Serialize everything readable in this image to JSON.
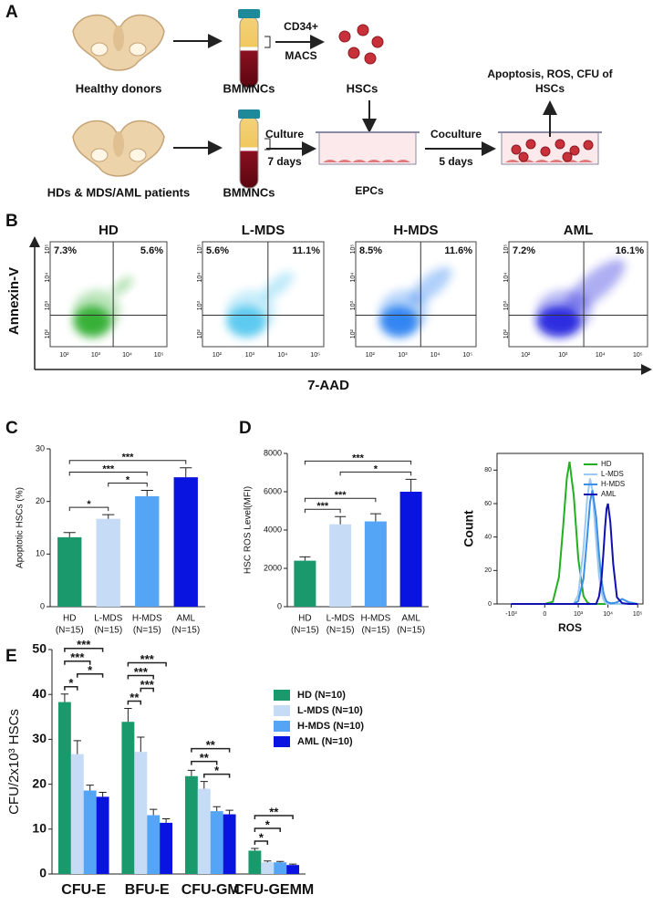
{
  "panel_labels": [
    "A",
    "B",
    "C",
    "D",
    "E"
  ],
  "diagram": {
    "row1_source": "Healthy donors",
    "row1_tube": "BMMNCs",
    "row1_step_top": "CD34+",
    "row1_step_bottom": "MACS",
    "row1_cells": "HSCs",
    "row2_source": "HDs & MDS/AML patients",
    "row2_tube": "BMMNCs",
    "row2_step_top": "Culture",
    "row2_step_bottom": "7 days",
    "row2_dish": "EPCs",
    "row2_coculture_top": "Coculture",
    "row2_coculture_bottom": "5 days",
    "readout_line1": "Apoptosis, ROS, CFU of",
    "readout_line2": "HSCs"
  },
  "flow": {
    "x_label": "7-AAD",
    "y_label": "Annexin-V",
    "xticks": [
      "10²",
      "10³",
      "10⁴",
      "10⁵"
    ],
    "yticks": [
      "10²",
      "10³",
      "10⁴",
      "10⁵"
    ],
    "plots": [
      {
        "title": "HD",
        "upper_left": "7.3%",
        "upper_right": "5.6%",
        "color": "#22a822"
      },
      {
        "title": "L-MDS",
        "upper_left": "5.6%",
        "upper_right": "11.1%",
        "color": "#4cc4ee"
      },
      {
        "title": "H-MDS",
        "upper_left": "8.5%",
        "upper_right": "11.6%",
        "color": "#1e78f0"
      },
      {
        "title": "AML",
        "upper_left": "7.2%",
        "upper_right": "16.1%",
        "color": "#1414dc"
      }
    ]
  },
  "chart_data": [
    {
      "type": "bar",
      "y_label": "Apoptotic HSCs (%)",
      "categories": [
        "HD",
        "L-MDS",
        "H-MDS",
        "AML"
      ],
      "category_sublabels": [
        "(N=15)",
        "(N=15)",
        "(N=15)",
        "(N=15)"
      ],
      "values": [
        13.2,
        16.7,
        21.0,
        24.6
      ],
      "errors": [
        0.9,
        0.8,
        1.1,
        1.8
      ],
      "colors": [
        "#1a9a6c",
        "#c6dbf5",
        "#55a5f7",
        "#0a14e0"
      ],
      "ylim": [
        0,
        30
      ],
      "yticks": [
        0,
        10,
        20,
        30
      ],
      "significance": [
        {
          "from": "HD",
          "to": "L-MDS",
          "label": "*"
        },
        {
          "from": "L-MDS",
          "to": "H-MDS",
          "label": "*"
        },
        {
          "from": "HD",
          "to": "H-MDS",
          "label": "***"
        },
        {
          "from": "HD",
          "to": "AML",
          "label": "***"
        }
      ]
    },
    {
      "type": "bar",
      "y_label": "HSC ROS Level(MFI)",
      "categories": [
        "HD",
        "L-MDS",
        "H-MDS",
        "AML"
      ],
      "category_sublabels": [
        "(N=15)",
        "(N=15)",
        "(N=15)",
        "(N=15)"
      ],
      "values": [
        2400,
        4300,
        4450,
        6000
      ],
      "errors": [
        200,
        400,
        400,
        650
      ],
      "colors": [
        "#1a9a6c",
        "#c6dbf5",
        "#55a5f7",
        "#0a14e0"
      ],
      "ylim": [
        0,
        8000
      ],
      "yticks": [
        0,
        2000,
        4000,
        6000,
        8000
      ],
      "significance": [
        {
          "from": "HD",
          "to": "L-MDS",
          "label": "***"
        },
        {
          "from": "HD",
          "to": "H-MDS",
          "label": "***"
        },
        {
          "from": "L-MDS",
          "to": "AML",
          "label": "*"
        },
        {
          "from": "HD",
          "to": "AML",
          "label": "***"
        }
      ]
    },
    {
      "type": "line",
      "x_label": "ROS",
      "y_label": "Count",
      "xscale": "asinh",
      "legend": "upper left",
      "x": [
        -1000,
        -300,
        0,
        100,
        200,
        300,
        400,
        500,
        700,
        1000,
        1500,
        2000,
        2500,
        3000,
        4000,
        5000,
        6000,
        7000,
        8000,
        9000,
        10000,
        12000,
        15000,
        20000,
        30000,
        50000,
        100000
      ],
      "series": [
        {
          "name": "HD",
          "color": "#22b022",
          "values": [
            0,
            0,
            0,
            1.3,
            16,
            48,
            75,
            85,
            65,
            27,
            4.7,
            1,
            0,
            0,
            0,
            0,
            0,
            0,
            0,
            0,
            0,
            0,
            0,
            0,
            0,
            0,
            0
          ]
        },
        {
          "name": "L-MDS",
          "color": "#9ccaf2",
          "values": [
            0,
            0,
            0,
            0,
            0,
            0,
            0,
            0,
            0,
            5.5,
            33,
            63,
            75,
            68,
            38,
            17,
            7,
            2.8,
            1,
            0,
            0,
            0,
            0,
            0,
            0,
            0,
            0
          ]
        },
        {
          "name": "H-MDS",
          "color": "#3c8fe6",
          "values": [
            0,
            0,
            0,
            0,
            0,
            0,
            0,
            0,
            0,
            1.7,
            15,
            40,
            61,
            68,
            52,
            30,
            15,
            7,
            3.4,
            1.5,
            1,
            0.5,
            0.5,
            1,
            3,
            1,
            0
          ]
        },
        {
          "name": "AML",
          "color": "#1010b0",
          "values": [
            0,
            0,
            0,
            0,
            0,
            0,
            0,
            0,
            0,
            0,
            0,
            0,
            0,
            0,
            0,
            4.4,
            14,
            30,
            46,
            57,
            60,
            49,
            24,
            4,
            0.5,
            0,
            0
          ]
        }
      ],
      "xlim": [
        -3000,
        150000
      ],
      "xticks": [
        {
          "value": -1000,
          "label": "-10³"
        },
        0,
        {
          "value": 1000,
          "label": "10³"
        },
        {
          "value": 10000,
          "label": "10⁴"
        },
        {
          "value": 100000,
          "label": "10⁵"
        }
      ],
      "ylim": [
        0,
        90
      ],
      "yticks": [
        0,
        20,
        40,
        60,
        80
      ]
    },
    {
      "type": "bar",
      "y_label": "CFU/2x10³ HSCs",
      "categories": [
        "CFU-E",
        "BFU-E",
        "CFU-GM",
        "CFU-GEMM"
      ],
      "legend": "upper right",
      "series": [
        {
          "name": "HD (N=10)",
          "color": "#1a9a6c",
          "values": [
            38.3,
            33.9,
            21.8,
            5.2
          ],
          "errors": [
            1.8,
            3.0,
            1.3,
            0.5
          ]
        },
        {
          "name": "L-MDS (N=10)",
          "color": "#c6dbf5",
          "values": [
            26.7,
            27.2,
            19.0,
            2.6
          ],
          "errors": [
            3.0,
            3.3,
            1.6,
            0.3
          ]
        },
        {
          "name": "H-MDS (N=10)",
          "color": "#55a5f7",
          "values": [
            18.6,
            13.1,
            14.0,
            2.6
          ],
          "errors": [
            1.2,
            1.3,
            1.0,
            0.2
          ]
        },
        {
          "name": "AML (N=10)",
          "color": "#0a14e0",
          "values": [
            17.2,
            11.4,
            13.3,
            2.0
          ],
          "errors": [
            1.0,
            0.9,
            0.9,
            0.2
          ]
        }
      ],
      "ylim": [
        0,
        50
      ],
      "yticks": [
        0,
        10,
        20,
        30,
        40,
        50
      ],
      "significance": [
        [
          {
            "from": "HD (N=10)",
            "to": "L-MDS (N=10)",
            "label": "*"
          },
          {
            "from": "L-MDS (N=10)",
            "to": "AML (N=10)",
            "label": "*"
          },
          {
            "from": "HD (N=10)",
            "to": "H-MDS (N=10)",
            "label": "***"
          },
          {
            "from": "HD (N=10)",
            "to": "AML (N=10)",
            "label": "***"
          }
        ],
        [
          {
            "from": "HD (N=10)",
            "to": "L-MDS (N=10)",
            "label": "**"
          },
          {
            "from": "L-MDS (N=10)",
            "to": "H-MDS (N=10)",
            "label": "***"
          },
          {
            "from": "HD (N=10)",
            "to": "H-MDS (N=10)",
            "label": "***"
          },
          {
            "from": "HD (N=10)",
            "to": "AML (N=10)",
            "label": "***"
          }
        ],
        [
          {
            "from": "L-MDS (N=10)",
            "to": "AML (N=10)",
            "label": "*"
          },
          {
            "from": "HD (N=10)",
            "to": "H-MDS (N=10)",
            "label": "**"
          },
          {
            "from": "HD (N=10)",
            "to": "AML (N=10)",
            "label": "**"
          }
        ],
        [
          {
            "from": "HD (N=10)",
            "to": "L-MDS (N=10)",
            "label": "*"
          },
          {
            "from": "HD (N=10)",
            "to": "H-MDS (N=10)",
            "label": "*"
          },
          {
            "from": "HD (N=10)",
            "to": "AML (N=10)",
            "label": "**"
          }
        ]
      ]
    }
  ]
}
